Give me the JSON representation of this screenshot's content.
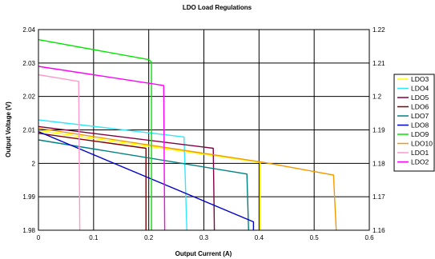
{
  "chart_data": {
    "type": "line",
    "title": "LDO Load Regulations",
    "xlabel": "Output Current (A)",
    "ylabel": "Output Voltage (V)",
    "xlim": [
      0,
      0.6
    ],
    "ylim": [
      1.98,
      2.04
    ],
    "y2lim": [
      1.16,
      1.22
    ],
    "xticks": [
      "0",
      "0.1",
      "0.2",
      "0.3",
      "0.4",
      "0.5",
      "0.6"
    ],
    "yticks": [
      "2.04",
      "2.03",
      "2.02",
      "2.01",
      "2",
      "1.99",
      "1.98"
    ],
    "y2ticks": [
      "1.22",
      "1.21",
      "1.2",
      "1.19",
      "1.18",
      "1.17",
      "1.16"
    ],
    "grid": true,
    "legend_position": "right",
    "series": [
      {
        "name": "LDO3",
        "color": "#ffff00",
        "axis": "right",
        "points": [
          [
            0,
            1.1898
          ],
          [
            0.402,
            1.1803
          ],
          [
            0.402,
            1.16
          ]
        ]
      },
      {
        "name": "LDO4",
        "color": "#33e6ff",
        "axis": "left",
        "points": [
          [
            0,
            2.013
          ],
          [
            0.264,
            2.0079
          ],
          [
            0.269,
            1.98
          ]
        ]
      },
      {
        "name": "LDO5",
        "color": "#800040",
        "axis": "left",
        "points": [
          [
            0,
            2.011
          ],
          [
            0.317,
            2.0045
          ],
          [
            0.319,
            1.98
          ]
        ]
      },
      {
        "name": "LDO6",
        "color": "#800000",
        "axis": "left",
        "points": [
          [
            0,
            2.009
          ],
          [
            0.195,
            2.0045
          ],
          [
            0.195,
            1.98
          ]
        ]
      },
      {
        "name": "LDO7",
        "color": "#008080",
        "axis": "left",
        "points": [
          [
            0,
            2.007
          ],
          [
            0.378,
            1.9968
          ],
          [
            0.381,
            1.98
          ]
        ]
      },
      {
        "name": "LDO8",
        "color": "#0000cc",
        "axis": "left",
        "points": [
          [
            0,
            2.0095
          ],
          [
            0.39,
            1.9825
          ],
          [
            0.39,
            1.98
          ]
        ]
      },
      {
        "name": "LDO9",
        "color": "#00e600",
        "axis": "left",
        "points": [
          [
            0,
            2.037
          ],
          [
            0.2,
            2.031
          ],
          [
            0.205,
            2.0303
          ],
          [
            0.205,
            1.98
          ]
        ]
      },
      {
        "name": "LDO10",
        "color": "#f29a00",
        "axis": "right",
        "points": [
          [
            0,
            1.1905
          ],
          [
            0.408,
            1.1803
          ],
          [
            0.535,
            1.1765
          ],
          [
            0.54,
            1.16
          ]
        ]
      },
      {
        "name": "LDO1",
        "color": "#ff99cc",
        "axis": "left",
        "points": [
          [
            0,
            2.0265
          ],
          [
            0.073,
            2.0245
          ],
          [
            0.075,
            1.98
          ]
        ]
      },
      {
        "name": "LDO2",
        "color": "#ff00ff",
        "axis": "left",
        "points": [
          [
            0,
            2.029
          ],
          [
            0.227,
            2.0233
          ],
          [
            0.229,
            1.98
          ]
        ]
      }
    ]
  }
}
